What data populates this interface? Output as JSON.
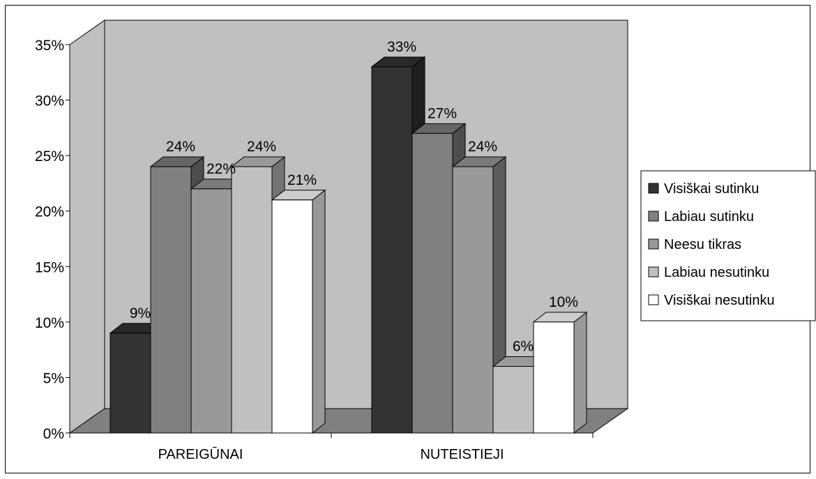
{
  "chart_data": {
    "type": "bar",
    "title": "",
    "xlabel": "",
    "ylabel": "",
    "ylim": [
      0,
      35
    ],
    "yticks": [
      "0%",
      "5%",
      "10%",
      "15%",
      "20%",
      "25%",
      "30%",
      "35%"
    ],
    "categories": [
      "PAREIGŪNAI",
      "NUTEISTIEJI"
    ],
    "series": [
      {
        "name": "Visiškai sutinku",
        "values": [
          9,
          33
        ],
        "labels": [
          "9%",
          "33%"
        ],
        "color": "#333333"
      },
      {
        "name": "Labiau sutinku",
        "values": [
          24,
          27
        ],
        "labels": [
          "24%",
          "27%"
        ],
        "color": "#808080"
      },
      {
        "name": "Neesu tikras",
        "values": [
          22,
          24
        ],
        "labels": [
          "22%",
          "24%"
        ],
        "color": "#999999"
      },
      {
        "name": "Labiau nesutinku",
        "values": [
          24,
          6
        ],
        "labels": [
          "24%",
          "6%"
        ],
        "color": "#c0c0c0"
      },
      {
        "name": "Visiškai nesutinku",
        "values": [
          21,
          10
        ],
        "labels": [
          "21%",
          "10%"
        ],
        "color": "#ffffff"
      }
    ],
    "grid": false,
    "three_d": true,
    "legend_position": "right",
    "wall_color": "#c0c0c0",
    "floor_color": "#808080"
  }
}
